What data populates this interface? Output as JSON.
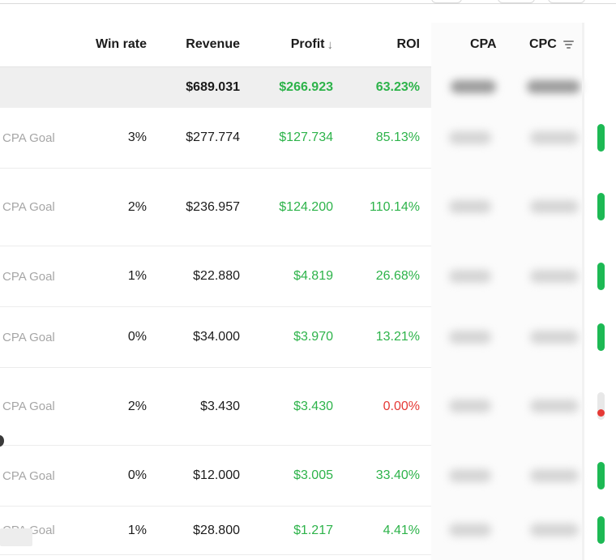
{
  "columns": {
    "win_rate": "Win rate",
    "revenue": "Revenue",
    "profit": "Profit",
    "roi": "ROI",
    "cpa": "CPA",
    "cpc": "CPC",
    "sort_indicator": "↓"
  },
  "totals": {
    "revenue": "$689.031",
    "profit": "$266.923",
    "roi": "63.23%"
  },
  "rows": [
    {
      "goal": "CPA Goal",
      "win_rate": "3%",
      "revenue": "$277.774",
      "profit": "$127.734",
      "roi": "85.13%",
      "status": "active"
    },
    {
      "goal": "CPA Goal",
      "win_rate": "2%",
      "revenue": "$236.957",
      "profit": "$124.200",
      "roi": "110.14%",
      "status": "active"
    },
    {
      "goal": "CPA Goal",
      "win_rate": "1%",
      "revenue": "$22.880",
      "profit": "$4.819",
      "roi": "26.68%",
      "status": "active"
    },
    {
      "goal": "CPA Goal",
      "win_rate": "0%",
      "revenue": "$34.000",
      "profit": "$3.970",
      "roi": "13.21%",
      "status": "active"
    },
    {
      "goal": "CPA Goal",
      "win_rate": "2%",
      "revenue": "$3.430",
      "profit": "$3.430",
      "roi": "0.00%",
      "status": "inactive"
    },
    {
      "goal": "CPA Goal",
      "win_rate": "0%",
      "revenue": "$12.000",
      "profit": "$3.005",
      "roi": "33.40%",
      "status": "active"
    },
    {
      "goal": "CPA Goal",
      "win_rate": "1%",
      "revenue": "$28.800",
      "profit": "$1.217",
      "roi": "4.41%",
      "status": "active"
    }
  ],
  "colors": {
    "positive": "#2db34a",
    "negative": "#e53935",
    "status_active": "#1db954",
    "total_row_bg": "#efefef"
  }
}
